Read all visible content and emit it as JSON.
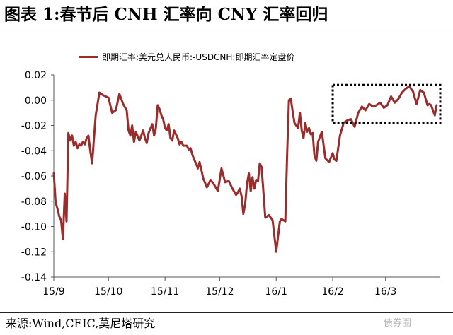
{
  "figure": {
    "title": "图表 1:春节后 CNH 汇率向 CNY 汇率回归",
    "source": "来源:Wind,CEIC,莫尼塔研究",
    "watermark": "债券圈"
  },
  "chart_data": {
    "type": "line",
    "title": "",
    "xlabel": "",
    "ylabel": "",
    "ylim": [
      -0.14,
      0.02
    ],
    "yticks": [
      0.02,
      0.0,
      -0.02,
      -0.04,
      -0.06,
      -0.08,
      -0.1,
      -0.12,
      -0.14
    ],
    "ytick_labels": [
      "0.02",
      "0.00",
      "-0.02",
      "-0.04",
      "-0.06",
      "-0.08",
      "-0.10",
      "-0.12",
      "-0.14"
    ],
    "xlim": [
      "2015-09-01",
      "2016-03-31"
    ],
    "xticks": [
      "2015-09-01",
      "2015-10-01",
      "2015-11-01",
      "2015-12-01",
      "2016-01-01",
      "2016-02-01",
      "2016-03-01"
    ],
    "xtick_labels": [
      "15/9",
      "15/10",
      "15/11",
      "15/12",
      "16/1",
      "16/2",
      "16/3"
    ],
    "legend": "top",
    "grid": false,
    "color": "#9b2c2c",
    "annotation": {
      "type": "dotted-box",
      "x": [
        "2016-02-01",
        "2016-03-31"
      ],
      "y": [
        -0.018,
        0.012
      ]
    },
    "series": [
      {
        "name": "即期汇率:美元兑人民币:-USDCNH:即期汇率定盘价",
        "x": [
          "2015-09-01",
          "2015-09-02",
          "2015-09-03",
          "2015-09-04",
          "2015-09-05",
          "2015-09-06",
          "2015-09-07",
          "2015-09-08",
          "2015-09-09",
          "2015-09-10",
          "2015-09-11",
          "2015-09-12",
          "2015-09-13",
          "2015-09-14",
          "2015-09-15",
          "2015-09-16",
          "2015-09-17",
          "2015-09-18",
          "2015-09-19",
          "2015-09-20",
          "2015-09-21",
          "2015-09-22",
          "2015-09-24",
          "2015-09-26",
          "2015-09-28",
          "2015-10-01",
          "2015-10-03",
          "2015-10-05",
          "2015-10-07",
          "2015-10-09",
          "2015-10-11",
          "2015-10-12",
          "2015-10-13",
          "2015-10-14",
          "2015-10-15",
          "2015-10-16",
          "2015-10-18",
          "2015-10-20",
          "2015-10-21",
          "2015-10-22",
          "2015-10-23",
          "2015-10-25",
          "2015-10-26",
          "2015-10-27",
          "2015-10-28",
          "2015-10-29",
          "2015-10-30",
          "2015-10-31",
          "2015-11-01",
          "2015-11-02",
          "2015-11-03",
          "2015-11-04",
          "2015-11-05",
          "2015-11-06",
          "2015-11-08",
          "2015-11-09",
          "2015-11-10",
          "2015-11-11",
          "2015-11-13",
          "2015-11-14",
          "2015-11-15",
          "2015-11-16",
          "2015-11-17",
          "2015-11-18",
          "2015-11-19",
          "2015-11-20",
          "2015-11-22",
          "2015-11-24",
          "2015-11-26",
          "2015-11-28",
          "2015-11-30",
          "2015-12-02",
          "2015-12-04",
          "2015-12-06",
          "2015-12-08",
          "2015-12-10",
          "2015-12-11",
          "2015-12-12",
          "2015-12-13",
          "2015-12-14",
          "2015-12-15",
          "2015-12-16",
          "2015-12-17",
          "2015-12-18",
          "2015-12-19",
          "2015-12-20",
          "2015-12-21",
          "2015-12-22",
          "2015-12-23",
          "2015-12-24",
          "2015-12-26",
          "2015-12-28",
          "2015-12-30",
          "2016-01-01",
          "2016-01-03",
          "2016-01-04",
          "2016-01-05",
          "2016-01-06",
          "2016-01-07",
          "2016-01-08",
          "2016-01-09",
          "2016-01-11",
          "2016-01-13",
          "2016-01-14",
          "2016-01-15",
          "2016-01-16",
          "2016-01-17",
          "2016-01-18",
          "2016-01-19",
          "2016-01-20",
          "2016-01-21",
          "2016-01-22",
          "2016-01-23",
          "2016-01-24",
          "2016-01-26",
          "2016-01-28",
          "2016-01-30",
          "2016-02-01",
          "2016-02-02",
          "2016-02-03",
          "2016-02-05",
          "2016-02-07",
          "2016-02-09",
          "2016-02-11",
          "2016-02-13",
          "2016-02-15",
          "2016-02-17",
          "2016-02-19",
          "2016-02-21",
          "2016-02-23",
          "2016-02-25",
          "2016-02-27",
          "2016-02-29",
          "2016-03-02",
          "2016-03-04",
          "2016-03-06",
          "2016-03-08",
          "2016-03-10",
          "2016-03-12",
          "2016-03-14",
          "2016-03-16",
          "2016-03-18",
          "2016-03-20",
          "2016-03-22",
          "2016-03-24",
          "2016-03-25",
          "2016-03-26",
          "2016-03-28",
          "2016-03-29"
        ],
        "values": [
          -0.058,
          -0.081,
          -0.086,
          -0.092,
          -0.095,
          -0.11,
          -0.074,
          -0.096,
          -0.026,
          -0.032,
          -0.028,
          -0.036,
          -0.033,
          -0.038,
          -0.035,
          -0.036,
          -0.033,
          -0.035,
          -0.03,
          -0.028,
          -0.04,
          -0.05,
          -0.012,
          0.006,
          0.004,
          0.002,
          -0.01,
          -0.008,
          0.005,
          -0.003,
          -0.008,
          -0.024,
          -0.028,
          -0.02,
          -0.033,
          -0.025,
          -0.032,
          -0.024,
          -0.03,
          -0.034,
          -0.026,
          -0.019,
          -0.028,
          -0.022,
          -0.004,
          -0.007,
          -0.012,
          -0.015,
          -0.022,
          -0.024,
          -0.019,
          -0.03,
          -0.032,
          -0.024,
          -0.03,
          -0.035,
          -0.033,
          -0.036,
          -0.036,
          -0.039,
          -0.038,
          -0.043,
          -0.047,
          -0.05,
          -0.054,
          -0.049,
          -0.062,
          -0.069,
          -0.063,
          -0.067,
          -0.072,
          -0.054,
          -0.065,
          -0.064,
          -0.07,
          -0.075,
          -0.073,
          -0.07,
          -0.076,
          -0.09,
          -0.082,
          -0.066,
          -0.058,
          -0.072,
          -0.061,
          -0.07,
          -0.063,
          -0.064,
          -0.05,
          -0.053,
          -0.093,
          -0.091,
          -0.095,
          -0.12,
          -0.096,
          -0.094,
          -0.095,
          -0.096,
          -0.042,
          0.0,
          0.001,
          -0.018,
          -0.022,
          -0.01,
          -0.024,
          -0.03,
          -0.018,
          -0.025,
          -0.022,
          -0.027,
          -0.026,
          -0.044,
          -0.048,
          -0.033,
          -0.025,
          -0.046,
          -0.049,
          -0.042,
          -0.047,
          -0.048,
          -0.028,
          -0.018,
          -0.016,
          -0.015,
          -0.021,
          -0.01,
          -0.005,
          -0.008,
          -0.003,
          -0.005,
          -0.004,
          -0.002,
          -0.006,
          -0.004,
          0.003,
          -0.002,
          0.001,
          0.006,
          0.009,
          0.011,
          0.007,
          -0.003,
          0.008,
          0.006,
          -0.004,
          -0.003,
          -0.004,
          -0.012,
          -0.004
        ]
      }
    ]
  }
}
